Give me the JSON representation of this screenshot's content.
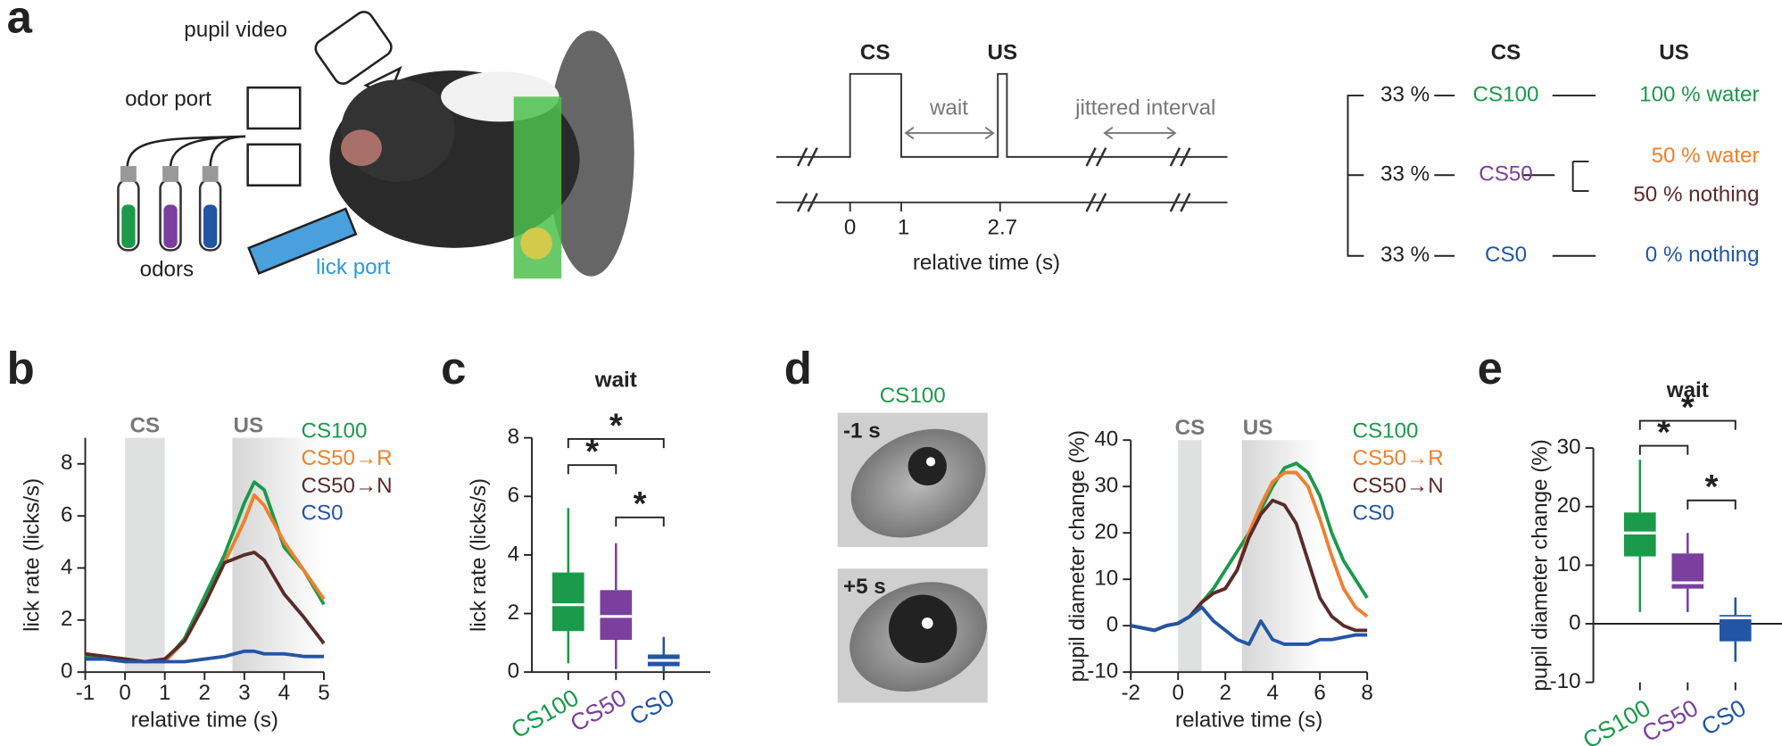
{
  "panel_labels": [
    "a",
    "b",
    "c",
    "d",
    "e"
  ],
  "setup": {
    "pupil_video": "pupil video",
    "odor_port": "odor port",
    "odors": "odors",
    "lick_port": "lick port"
  },
  "timeline": {
    "cs": "CS",
    "us": "US",
    "wait": "wait",
    "jittered": "jittered interval",
    "ticks": [
      "0",
      "1",
      "2.7"
    ],
    "xlabel": "relative time (s)"
  },
  "tree": {
    "headers": [
      "CS",
      "US"
    ],
    "rows": [
      {
        "prob": "33 %",
        "cs": "CS100",
        "outcomes": [
          "100 % water"
        ]
      },
      {
        "prob": "33 %",
        "cs": "CS50",
        "outcomes": [
          "50 % water",
          "50 % nothing"
        ]
      },
      {
        "prob": "33 %",
        "cs": "CS0",
        "outcomes": [
          "0 % nothing"
        ]
      }
    ]
  },
  "eye_images": {
    "title": "CS100",
    "labels": [
      "-1 s",
      "+5 s"
    ]
  },
  "chart_data": [
    {
      "type": "line",
      "xlabel": "relative time (s)",
      "ylabel": "lick rate (licks/s)",
      "xlim": [
        -1,
        5
      ],
      "xticks": [
        -1,
        0,
        1,
        2,
        3,
        4,
        5
      ],
      "ylim": [
        0,
        9
      ],
      "yticks": [
        0,
        2,
        4,
        6,
        8
      ],
      "regions": [
        {
          "label": "CS",
          "range": [
            0,
            1
          ]
        },
        {
          "label": "US",
          "range": [
            2.7,
            5
          ]
        }
      ],
      "x": [
        -1,
        -0.5,
        0,
        0.5,
        1,
        1.5,
        2,
        2.5,
        3,
        3.25,
        3.5,
        4,
        4.5,
        5
      ],
      "series": [
        {
          "name": "CS100",
          "color": "#1a9a4a",
          "values": [
            0.6,
            0.6,
            0.5,
            0.4,
            0.4,
            1.3,
            2.9,
            4.5,
            6.5,
            7.3,
            7.0,
            4.8,
            3.9,
            2.6
          ]
        },
        {
          "name": "CS50→R",
          "color": "#f07f2d",
          "values": [
            0.7,
            0.6,
            0.5,
            0.4,
            0.4,
            1.2,
            2.6,
            4.2,
            5.8,
            6.8,
            6.4,
            5.0,
            3.9,
            2.8
          ]
        },
        {
          "name": "CS50→N",
          "color": "#5b2a2a",
          "values": [
            0.7,
            0.6,
            0.5,
            0.4,
            0.5,
            1.2,
            2.6,
            4.2,
            4.5,
            4.6,
            4.3,
            3.0,
            2.1,
            1.1
          ]
        },
        {
          "name": "CS0",
          "color": "#2255a4",
          "values": [
            0.5,
            0.5,
            0.4,
            0.4,
            0.4,
            0.4,
            0.5,
            0.6,
            0.8,
            0.8,
            0.7,
            0.7,
            0.6,
            0.6
          ]
        }
      ]
    },
    {
      "type": "box",
      "title": "wait",
      "ylabel": "lick rate (licks/s)",
      "ylim": [
        0,
        8
      ],
      "yticks": [
        0,
        2,
        4,
        6,
        8
      ],
      "categories": [
        "CS100",
        "CS50",
        "CS0"
      ],
      "colors": [
        "#1a9a4a",
        "#7b3f9e",
        "#2255a4"
      ],
      "boxes": [
        {
          "min": 0.3,
          "q1": 1.4,
          "median": 2.3,
          "q3": 3.4,
          "max": 5.6
        },
        {
          "min": 0.1,
          "q1": 1.1,
          "median": 1.9,
          "q3": 2.8,
          "max": 4.4
        },
        {
          "min": 0,
          "q1": 0.2,
          "median": 0.4,
          "q3": 0.6,
          "max": 1.2
        }
      ],
      "annotations": [
        "*",
        "*",
        "*"
      ]
    },
    {
      "type": "line",
      "xlabel": "relative time (s)",
      "ylabel": "pupil diameter change (%)",
      "xlim": [
        -2,
        8
      ],
      "xticks": [
        -2,
        0,
        2,
        4,
        6,
        8
      ],
      "ylim": [
        -10,
        40
      ],
      "yticks": [
        -10,
        0,
        10,
        20,
        30,
        40
      ],
      "regions": [
        {
          "label": "CS",
          "range": [
            0,
            1
          ]
        },
        {
          "label": "US",
          "range": [
            2.7,
            6
          ]
        }
      ],
      "x": [
        -2,
        -1.5,
        -1,
        -0.5,
        0,
        0.5,
        1,
        1.5,
        2,
        2.5,
        3,
        3.5,
        4,
        4.5,
        5,
        5.5,
        6,
        6.5,
        7,
        7.5,
        8
      ],
      "series": [
        {
          "name": "CS100",
          "color": "#1a9a4a",
          "values": [
            0,
            -0.5,
            -1,
            0,
            0.5,
            2,
            5,
            8,
            12,
            16,
            20,
            25,
            30,
            34,
            35,
            33,
            28,
            20,
            14,
            10,
            6
          ]
        },
        {
          "name": "CS50→R",
          "color": "#f07f2d",
          "values": [
            0,
            -0.5,
            -1,
            0,
            0.5,
            2,
            5,
            7,
            8,
            12,
            20,
            26,
            31,
            33,
            33,
            30,
            23,
            15,
            8,
            4,
            2
          ]
        },
        {
          "name": "CS50→N",
          "color": "#5b2a2a",
          "values": [
            0,
            -0.5,
            -1,
            0,
            0.5,
            2,
            5,
            7,
            8,
            12,
            19,
            24,
            27,
            26,
            22,
            14,
            6,
            2,
            0,
            -1,
            -1
          ]
        },
        {
          "name": "CS0",
          "color": "#2255a4",
          "values": [
            0,
            -0.5,
            -1,
            0,
            0.5,
            2,
            4,
            1,
            -1,
            -3,
            -4,
            1,
            -3,
            -4,
            -4,
            -4,
            -3,
            -3,
            -2.5,
            -2,
            -2
          ]
        }
      ]
    },
    {
      "type": "box",
      "title": "wait",
      "ylabel": "pupil diameter change (%)",
      "ylim": [
        -10,
        30
      ],
      "yticks": [
        -10,
        0,
        10,
        20,
        30
      ],
      "zero_line": true,
      "categories": [
        "CS100",
        "CS50",
        "CS0"
      ],
      "colors": [
        "#1a9a4a",
        "#7b3f9e",
        "#2255a4"
      ],
      "boxes": [
        {
          "min": 2,
          "q1": 11.5,
          "median": 15.5,
          "q3": 19,
          "max": 28
        },
        {
          "min": 2,
          "q1": 6,
          "median": 7,
          "q3": 12,
          "max": 15.5
        },
        {
          "min": -6.5,
          "q1": -3,
          "median": 1,
          "q3": 1.5,
          "max": 4.5
        }
      ],
      "annotations": [
        "*",
        "*",
        "*"
      ]
    }
  ]
}
